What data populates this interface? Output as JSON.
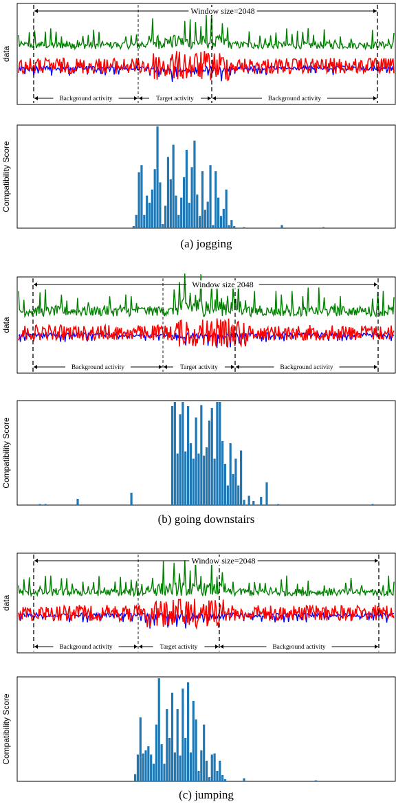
{
  "panels": [
    {
      "id": "a",
      "caption": "(a)  jogging",
      "signal_ylabel": "data",
      "score_ylabel": "Compatibility Score",
      "window_label": "Window size=2048",
      "annotations": {
        "left": "Background activity",
        "middle": "Target activity",
        "right": "Background activity"
      },
      "target_range": [
        0.34,
        0.56
      ]
    },
    {
      "id": "b",
      "caption": "(b)  going downstairs",
      "signal_ylabel": "data",
      "score_ylabel": "Compatibility Score",
      "window_label": "Window size  2048",
      "annotations": {
        "left": "Background activity",
        "middle": "Target activity",
        "right": "Background activity"
      },
      "target_range": [
        0.41,
        0.61
      ]
    },
    {
      "id": "c",
      "caption": "(c)  jumping",
      "signal_ylabel": "data",
      "score_ylabel": "Compatibility Score",
      "window_label": "Window size=2048",
      "annotations": {
        "left": "Background activity",
        "middle": "Target activity",
        "right": "Background activity"
      },
      "target_range": [
        0.34,
        0.55
      ]
    }
  ],
  "chart_data": [
    {
      "type": "line",
      "panel": "a",
      "ylabel": "data",
      "series": [
        {
          "color": "#007f00"
        },
        {
          "color": "#0000ff"
        },
        {
          "color": "#ff0000"
        }
      ]
    },
    {
      "type": "bar",
      "panel": "a",
      "ylabel": "Compatibility Score",
      "color": "#1f77b4",
      "x_range": [
        0,
        1
      ],
      "ylim": [
        0,
        1
      ],
      "x": [
        0.308,
        0.315,
        0.322,
        0.329,
        0.336,
        0.343,
        0.35,
        0.357,
        0.364,
        0.371,
        0.378,
        0.385,
        0.392,
        0.399,
        0.406,
        0.413,
        0.42,
        0.427,
        0.434,
        0.441,
        0.448,
        0.455,
        0.462,
        0.469,
        0.476,
        0.483,
        0.49,
        0.497,
        0.504,
        0.511,
        0.518,
        0.525,
        0.532,
        0.539,
        0.546,
        0.553,
        0.56,
        0.567,
        0.574,
        0.6,
        0.7,
        0.81
      ],
      "values": [
        0.02,
        0.13,
        0.55,
        0.62,
        0.13,
        0.32,
        0.25,
        0.38,
        0.58,
        1.0,
        0.45,
        0.04,
        0.22,
        0.7,
        0.48,
        0.82,
        0.32,
        0.13,
        0.3,
        0.5,
        0.77,
        0.25,
        0.6,
        0.86,
        0.33,
        0.12,
        0.56,
        0.18,
        0.26,
        0.62,
        0.03,
        0.56,
        0.3,
        0.12,
        0.19,
        0.38,
        0.03,
        0.08,
        0.02,
        0.01,
        0.03,
        0.01
      ]
    },
    {
      "type": "line",
      "panel": "b",
      "ylabel": "data",
      "series": [
        {
          "color": "#007f00"
        },
        {
          "color": "#0000ff"
        },
        {
          "color": "#ff0000"
        }
      ]
    },
    {
      "type": "bar",
      "panel": "b",
      "ylabel": "Compatibility Score",
      "color": "#1f77b4",
      "x_range": [
        0,
        1
      ],
      "ylim": [
        0,
        1
      ],
      "x": [
        0.06,
        0.075,
        0.16,
        0.302,
        0.41,
        0.417,
        0.424,
        0.431,
        0.438,
        0.445,
        0.452,
        0.459,
        0.466,
        0.473,
        0.48,
        0.487,
        0.494,
        0.501,
        0.508,
        0.515,
        0.522,
        0.529,
        0.536,
        0.543,
        0.55,
        0.557,
        0.564,
        0.571,
        0.578,
        0.585,
        0.592,
        0.6,
        0.613,
        0.625,
        0.645,
        0.66,
        0.69,
        0.94
      ],
      "values": [
        0.01,
        0.01,
        0.06,
        0.12,
        0.96,
        1.0,
        0.5,
        0.88,
        1.0,
        0.52,
        0.96,
        0.6,
        0.45,
        0.85,
        0.5,
        0.97,
        0.48,
        0.56,
        0.82,
        0.94,
        0.45,
        1.0,
        1.0,
        0.62,
        0.4,
        0.19,
        0.6,
        0.3,
        0.45,
        0.19,
        0.53,
        0.05,
        0.09,
        0.04,
        0.08,
        0.22,
        0.01,
        0.01
      ]
    },
    {
      "type": "line",
      "panel": "c",
      "ylabel": "data",
      "series": [
        {
          "color": "#007f00"
        },
        {
          "color": "#0000ff"
        },
        {
          "color": "#ff0000"
        }
      ]
    },
    {
      "type": "bar",
      "panel": "c",
      "ylabel": "Compatibility Score",
      "color": "#1f77b4",
      "x_range": [
        0,
        1
      ],
      "ylim": [
        0,
        1
      ],
      "x": [
        0.312,
        0.319,
        0.326,
        0.333,
        0.34,
        0.347,
        0.354,
        0.361,
        0.368,
        0.375,
        0.382,
        0.389,
        0.396,
        0.403,
        0.41,
        0.417,
        0.424,
        0.431,
        0.438,
        0.445,
        0.452,
        0.459,
        0.466,
        0.473,
        0.48,
        0.487,
        0.494,
        0.501,
        0.508,
        0.515,
        0.522,
        0.529,
        0.536,
        0.543,
        0.55,
        0.6,
        0.79
      ],
      "values": [
        0.07,
        0.26,
        0.62,
        0.27,
        0.3,
        0.34,
        0.26,
        0.17,
        0.55,
        1.0,
        0.36,
        0.17,
        0.7,
        0.42,
        0.86,
        0.28,
        0.7,
        0.25,
        0.9,
        0.42,
        0.96,
        0.28,
        0.78,
        0.6,
        0.1,
        0.3,
        0.55,
        0.2,
        0.04,
        0.26,
        0.27,
        0.1,
        0.2,
        0.06,
        0.02,
        0.03,
        0.01
      ]
    }
  ]
}
